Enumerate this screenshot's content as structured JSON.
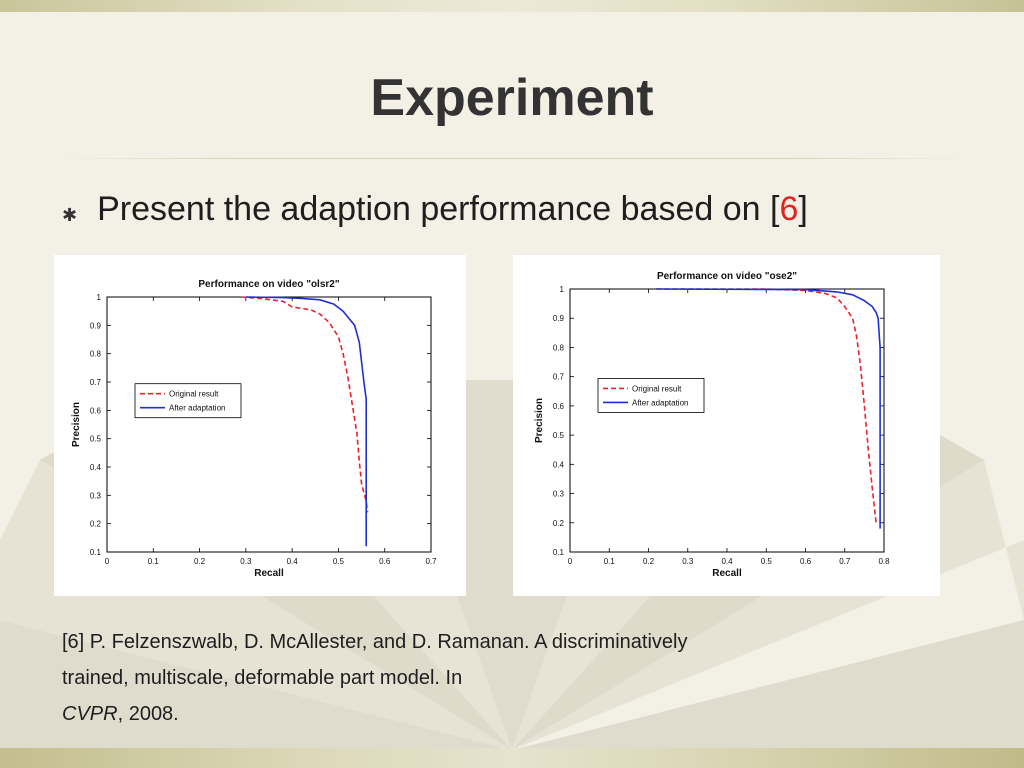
{
  "slide": {
    "title": "Experiment",
    "bullet": {
      "icon": "asterisk-bullet-icon",
      "text_prefix": "Present the adaption performance based on [",
      "ref": "6",
      "text_suffix": "]",
      "ref_color": "#e0241c"
    },
    "citation": {
      "line1": "[6] P. Felzenszwalb, D. McAllester, and D. Ramanan. A discriminatively",
      "line2": "trained, multiscale, deformable part model. In",
      "venue": "CVPR",
      "year_suffix": ", 2008."
    }
  },
  "chart_data": [
    {
      "type": "line",
      "title": "Performance on video \"olsr2\"",
      "xlabel": "Recall",
      "ylabel": "Precision",
      "xlim": [
        0,
        0.7
      ],
      "ylim": [
        0.1,
        1
      ],
      "xticks": [
        "0",
        "0.1",
        "0.2",
        "0.3",
        "0.4",
        "0.5",
        "0.6",
        "0.7"
      ],
      "yticks": [
        "0.1",
        "0.2",
        "0.3",
        "0.4",
        "0.5",
        "0.6",
        "0.7",
        "0.8",
        "0.9",
        "1"
      ],
      "legend_position": "center-left",
      "series": [
        {
          "name": "Original result",
          "color": "#e8232b",
          "dash": true,
          "points": [
            [
              0.29,
              1.0
            ],
            [
              0.33,
              0.995
            ],
            [
              0.38,
              0.985
            ],
            [
              0.4,
              0.965
            ],
            [
              0.44,
              0.955
            ],
            [
              0.46,
              0.94
            ],
            [
              0.48,
              0.91
            ],
            [
              0.5,
              0.86
            ],
            [
              0.51,
              0.8
            ],
            [
              0.52,
              0.72
            ],
            [
              0.53,
              0.62
            ],
            [
              0.54,
              0.52
            ],
            [
              0.545,
              0.42
            ],
            [
              0.55,
              0.34
            ],
            [
              0.56,
              0.28
            ],
            [
              0.563,
              0.24
            ]
          ]
        },
        {
          "name": "After adaptation",
          "color": "#1f2fd6",
          "dash": false,
          "points": [
            [
              0.3,
              1.0
            ],
            [
              0.38,
              0.998
            ],
            [
              0.42,
              0.995
            ],
            [
              0.46,
              0.99
            ],
            [
              0.49,
              0.975
            ],
            [
              0.51,
              0.95
            ],
            [
              0.525,
              0.92
            ],
            [
              0.535,
              0.9
            ],
            [
              0.545,
              0.84
            ],
            [
              0.55,
              0.77
            ],
            [
              0.555,
              0.7
            ],
            [
              0.56,
              0.64
            ],
            [
              0.56,
              0.5
            ],
            [
              0.56,
              0.3
            ],
            [
              0.56,
              0.12
            ]
          ]
        }
      ]
    },
    {
      "type": "line",
      "title": "Performance on video \"ose2\"",
      "xlabel": "Recall",
      "ylabel": "Precision",
      "xlim": [
        0,
        0.8
      ],
      "ylim": [
        0.1,
        1
      ],
      "xticks": [
        "0",
        "0.1",
        "0.2",
        "0.3",
        "0.4",
        "0.5",
        "0.6",
        "0.7",
        "0.8"
      ],
      "yticks": [
        "0.1",
        "0.2",
        "0.3",
        "0.4",
        "0.5",
        "0.6",
        "0.7",
        "0.8",
        "0.9",
        "1"
      ],
      "legend_position": "center-left",
      "series": [
        {
          "name": "Original result",
          "color": "#e8232b",
          "dash": true,
          "points": [
            [
              0.22,
              1.0
            ],
            [
              0.5,
              1.0
            ],
            [
              0.6,
              0.995
            ],
            [
              0.65,
              0.985
            ],
            [
              0.68,
              0.97
            ],
            [
              0.7,
              0.94
            ],
            [
              0.72,
              0.9
            ],
            [
              0.73,
              0.84
            ],
            [
              0.74,
              0.74
            ],
            [
              0.75,
              0.6
            ],
            [
              0.76,
              0.45
            ],
            [
              0.77,
              0.32
            ],
            [
              0.78,
              0.2
            ]
          ]
        },
        {
          "name": "After adaptation",
          "color": "#1f2fd6",
          "dash": false,
          "points": [
            [
              0.22,
              1.0
            ],
            [
              0.6,
              0.998
            ],
            [
              0.68,
              0.99
            ],
            [
              0.72,
              0.98
            ],
            [
              0.75,
              0.96
            ],
            [
              0.77,
              0.94
            ],
            [
              0.78,
              0.92
            ],
            [
              0.785,
              0.9
            ],
            [
              0.79,
              0.8
            ],
            [
              0.79,
              0.6
            ],
            [
              0.79,
              0.4
            ],
            [
              0.79,
              0.18
            ]
          ]
        }
      ]
    }
  ]
}
